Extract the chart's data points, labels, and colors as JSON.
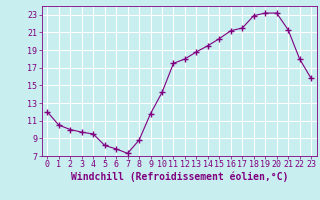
{
  "x": [
    0,
    1,
    2,
    3,
    4,
    5,
    6,
    7,
    8,
    9,
    10,
    11,
    12,
    13,
    14,
    15,
    16,
    17,
    18,
    19,
    20,
    21,
    22,
    23
  ],
  "y": [
    12.0,
    10.5,
    10.0,
    9.7,
    9.5,
    8.2,
    7.8,
    7.3,
    8.8,
    11.8,
    14.2,
    17.5,
    18.0,
    18.8,
    19.5,
    20.3,
    21.2,
    21.5,
    22.9,
    23.2,
    23.2,
    21.3,
    18.0,
    15.8
  ],
  "line_color": "#800080",
  "marker": "+",
  "marker_size": 4,
  "marker_linewidth": 1.0,
  "background_color": "#c8eef0",
  "grid_color": "#ffffff",
  "xlabel": "Windchill (Refroidissement éolien,°C)",
  "tick_color": "#800080",
  "xlim": [
    -0.5,
    23.5
  ],
  "ylim": [
    7,
    24
  ],
  "yticks": [
    7,
    9,
    11,
    13,
    15,
    17,
    19,
    21,
    23
  ],
  "xticks": [
    0,
    1,
    2,
    3,
    4,
    5,
    6,
    7,
    8,
    9,
    10,
    11,
    12,
    13,
    14,
    15,
    16,
    17,
    18,
    19,
    20,
    21,
    22,
    23
  ],
  "tick_fontsize": 6,
  "xlabel_fontsize": 7,
  "line_width": 0.8
}
